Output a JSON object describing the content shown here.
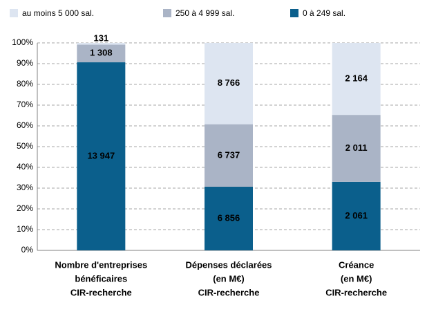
{
  "chart_data": {
    "type": "bar",
    "stacking": "percent",
    "categories": [
      [
        "Nombre d'entreprises",
        "bénéficaires",
        "CIR-recherche"
      ],
      [
        "Dépenses déclarées",
        "(en M€)",
        "CIR-recherche"
      ],
      [
        "Créance",
        "(en M€)",
        "CIR-recherche"
      ]
    ],
    "series": [
      {
        "name": "0 à 249  sal.",
        "color": "#0b5f8c",
        "values": [
          13947,
          6856,
          2061
        ],
        "value_labels": [
          "13 947",
          "6 856",
          "2 061"
        ]
      },
      {
        "name": "250 à 4 999  sal.",
        "color": "#aab4c6",
        "values": [
          1308,
          6737,
          2011
        ],
        "value_labels": [
          "1 308",
          "6 737",
          "2 011"
        ]
      },
      {
        "name": "au moins 5 000 sal.",
        "color": "#dde5f1",
        "values": [
          131,
          8766,
          2164
        ],
        "value_labels": [
          "131",
          "8 766",
          "2 164"
        ]
      }
    ],
    "ylim": [
      0,
      100
    ],
    "yticks": [
      {
        "value": 0,
        "label": "0%"
      },
      {
        "value": 10,
        "label": "10%"
      },
      {
        "value": 20,
        "label": "20%"
      },
      {
        "value": 30,
        "label": "30%"
      },
      {
        "value": 40,
        "label": "40%"
      },
      {
        "value": 50,
        "label": "50%"
      },
      {
        "value": 60,
        "label": "60%"
      },
      {
        "value": 70,
        "label": "70%"
      },
      {
        "value": 80,
        "label": "80%"
      },
      {
        "value": 90,
        "label": "90%"
      },
      {
        "value": 100,
        "label": "100%"
      }
    ],
    "grid": true,
    "legend": "top"
  }
}
